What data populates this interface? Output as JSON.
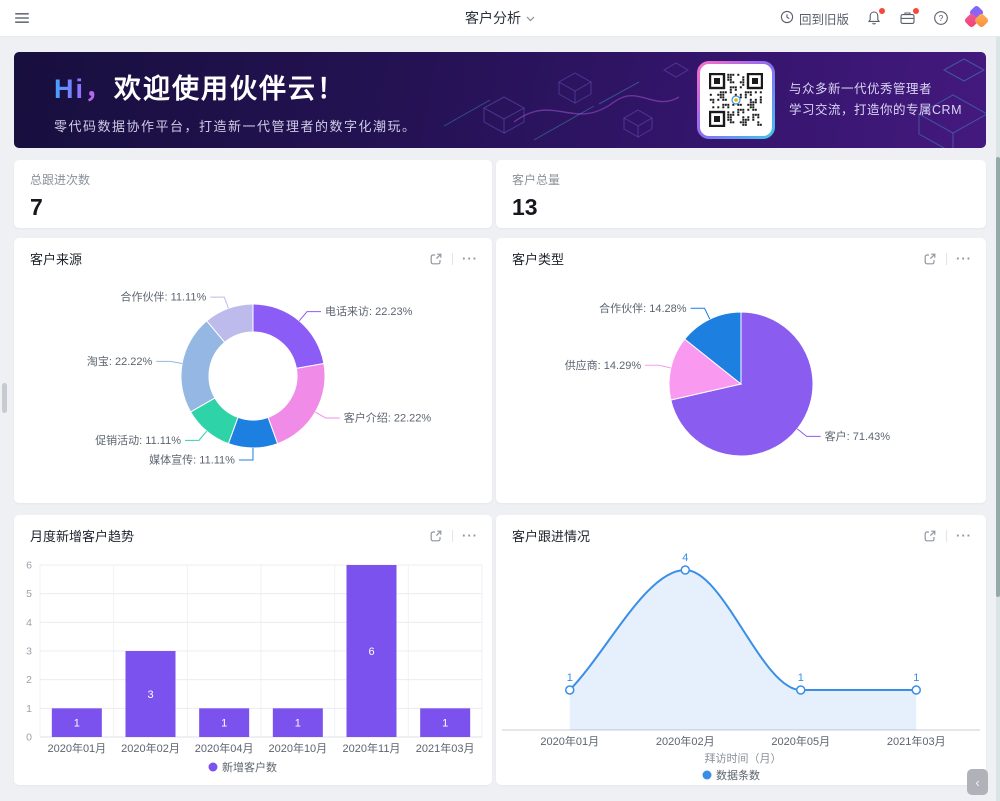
{
  "topbar": {
    "title": "客户分析",
    "back_to_old_label": "回到旧版"
  },
  "icons": {
    "help": "?",
    "more": "···",
    "collapse": "‹"
  },
  "banner": {
    "greeting_hi": "Hi，",
    "greeting_rest": "欢迎使用伙伴云！",
    "subtitle": "零代码数据协作平台，打造新一代管理者的数字化潮玩。",
    "qr_text_line1": "与众多新一代优秀管理者",
    "qr_text_line2": "学习交流，打造你的专属CRM"
  },
  "stats": [
    {
      "label": "总跟进次数",
      "value": "7"
    },
    {
      "label": "客户总量",
      "value": "13"
    }
  ],
  "cards": {
    "source_title": "客户来源",
    "type_title": "客户类型",
    "trend_title": "月度新增客户趋势",
    "follow_title": "客户跟进情况"
  },
  "chart_data": [
    {
      "type": "pie",
      "subtype": "donut",
      "title": "客户来源",
      "labels": [
        "电话来访",
        "客户介绍",
        "媒体宣传",
        "促销活动",
        "淘宝",
        "合作伙伴"
      ],
      "values": [
        22.23,
        22.22,
        11.11,
        11.11,
        22.22,
        11.11
      ],
      "colors": [
        "#8c5cf6",
        "#f08ce8",
        "#1d7fdf",
        "#2ed3a8",
        "#94b7e4",
        "#bdbaec"
      ],
      "label_format": "name: value%",
      "legend_position": "none"
    },
    {
      "type": "pie",
      "title": "客户类型",
      "labels": [
        "客户",
        "供应商",
        "合作伙伴"
      ],
      "values": [
        71.43,
        14.29,
        14.28
      ],
      "colors": [
        "#8a5cf0",
        "#f99af0",
        "#1d7fdf"
      ],
      "label_format": "name: value%",
      "legend_position": "none"
    },
    {
      "type": "bar",
      "title": "月度新增客户趋势",
      "categories": [
        "2020年01月",
        "2020年02月",
        "2020年04月",
        "2020年10月",
        "2020年11月",
        "2021年03月"
      ],
      "values": [
        1,
        3,
        1,
        1,
        6,
        1
      ],
      "ylim": [
        0,
        6
      ],
      "yticks": [
        0,
        1,
        2,
        3,
        4,
        5,
        6
      ],
      "color": "#7b52ee",
      "legend": "新增客户数",
      "grid": true,
      "xlabel": "",
      "ylabel": ""
    },
    {
      "type": "line",
      "title": "客户跟进情况",
      "categories": [
        "2020年01月",
        "2020年02月",
        "2020年05月",
        "2021年03月"
      ],
      "values": [
        1,
        4,
        1,
        1
      ],
      "color": "#3a8ee6",
      "smooth": true,
      "area": true,
      "ylim": [
        0,
        4.5
      ],
      "grid": false,
      "xlabel": "拜访时间（月）",
      "legend": "数据条数"
    }
  ]
}
